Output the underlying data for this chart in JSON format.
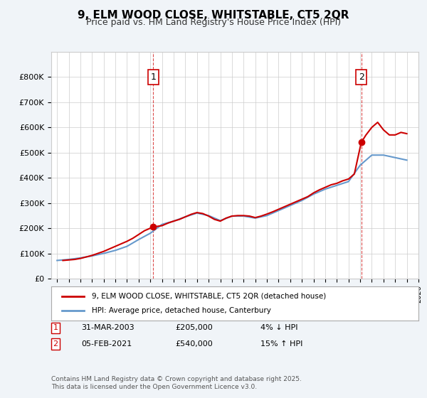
{
  "title": "9, ELM WOOD CLOSE, WHITSTABLE, CT5 2QR",
  "subtitle": "Price paid vs. HM Land Registry's House Price Index (HPI)",
  "legend_line1": "9, ELM WOOD CLOSE, WHITSTABLE, CT5 2QR (detached house)",
  "legend_line2": "HPI: Average price, detached house, Canterbury",
  "annotation1_label": "1",
  "annotation1_date": "31-MAR-2003",
  "annotation1_price": "£205,000",
  "annotation1_hpi": "4% ↓ HPI",
  "annotation2_label": "2",
  "annotation2_date": "05-FEB-2021",
  "annotation2_price": "£540,000",
  "annotation2_hpi": "15% ↑ HPI",
  "footer": "Contains HM Land Registry data © Crown copyright and database right 2025.\nThis data is licensed under the Open Government Licence v3.0.",
  "line_color_red": "#cc0000",
  "line_color_blue": "#6699cc",
  "vline_color": "#cc0000",
  "background_color": "#f0f4f8",
  "plot_bg_color": "#ffffff",
  "ylim": [
    0,
    900000
  ],
  "yticks": [
    0,
    100000,
    200000,
    300000,
    400000,
    500000,
    600000,
    700000,
    800000
  ],
  "xstart_year": 1995,
  "xend_year": 2026,
  "sale1_year": 2003.25,
  "sale2_year": 2021.09,
  "sale1_price": 205000,
  "sale2_price": 540000,
  "hpi_years": [
    1995,
    1996,
    1997,
    1998,
    1999,
    2000,
    2001,
    2002,
    2003,
    2004,
    2005,
    2006,
    2007,
    2008,
    2009,
    2010,
    2011,
    2012,
    2013,
    2014,
    2015,
    2016,
    2017,
    2018,
    2019,
    2020,
    2021,
    2022,
    2023,
    2024,
    2025
  ],
  "hpi_values": [
    72000,
    76000,
    82000,
    90000,
    100000,
    112000,
    128000,
    155000,
    180000,
    215000,
    228000,
    245000,
    260000,
    250000,
    230000,
    248000,
    248000,
    240000,
    250000,
    270000,
    290000,
    310000,
    335000,
    355000,
    370000,
    385000,
    450000,
    490000,
    490000,
    480000,
    470000
  ],
  "price_years": [
    1995.5,
    1996,
    1996.5,
    1997,
    1997.5,
    1998,
    1998.5,
    1999,
    1999.5,
    2000,
    2000.5,
    2001,
    2001.5,
    2002,
    2002.5,
    2003.25,
    2004,
    2004.5,
    2005,
    2005.5,
    2006,
    2006.5,
    2007,
    2007.5,
    2008,
    2008.5,
    2009,
    2009.5,
    2010,
    2010.5,
    2011,
    2011.5,
    2012,
    2012.5,
    2013,
    2013.5,
    2014,
    2014.5,
    2015,
    2015.5,
    2016,
    2016.5,
    2017,
    2017.5,
    2018,
    2018.5,
    2019,
    2019.5,
    2020,
    2020.5,
    2021.09,
    2021.5,
    2022,
    2022.5,
    2023,
    2023.5,
    2024,
    2024.5,
    2025
  ],
  "price_values": [
    72000,
    74000,
    76000,
    80000,
    86000,
    92000,
    100000,
    108000,
    118000,
    128000,
    138000,
    148000,
    160000,
    175000,
    190000,
    205000,
    210000,
    220000,
    228000,
    235000,
    245000,
    255000,
    262000,
    258000,
    248000,
    235000,
    228000,
    240000,
    248000,
    250000,
    250000,
    248000,
    242000,
    248000,
    256000,
    265000,
    275000,
    285000,
    295000,
    305000,
    315000,
    325000,
    340000,
    352000,
    362000,
    372000,
    378000,
    388000,
    395000,
    415000,
    540000,
    570000,
    600000,
    620000,
    590000,
    570000,
    570000,
    580000,
    575000
  ]
}
